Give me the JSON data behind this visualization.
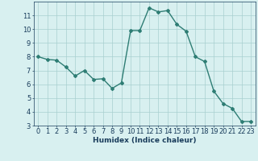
{
  "x": [
    0,
    1,
    2,
    3,
    4,
    5,
    6,
    7,
    8,
    9,
    10,
    11,
    12,
    13,
    14,
    15,
    16,
    17,
    18,
    19,
    20,
    21,
    22,
    23
  ],
  "y": [
    8.0,
    7.8,
    7.75,
    7.25,
    6.6,
    7.0,
    6.35,
    6.4,
    5.7,
    6.1,
    9.9,
    9.9,
    11.55,
    11.25,
    11.35,
    10.35,
    9.85,
    8.0,
    7.65,
    5.5,
    4.6,
    4.25,
    3.3,
    3.3
  ],
  "line_color": "#2e7d74",
  "marker": "D",
  "marker_size": 2.0,
  "bg_color": "#d8f0f0",
  "grid_color": "#a8d0d0",
  "xlabel": "Humidex (Indice chaleur)",
  "xlabel_color": "#1a3d5c",
  "tick_color": "#1a3d5c",
  "ylim": [
    3,
    12
  ],
  "xlim": [
    -0.5,
    23.5
  ],
  "yticks": [
    3,
    4,
    5,
    6,
    7,
    8,
    9,
    10,
    11
  ],
  "xticks": [
    0,
    1,
    2,
    3,
    4,
    5,
    6,
    7,
    8,
    9,
    10,
    11,
    12,
    13,
    14,
    15,
    16,
    17,
    18,
    19,
    20,
    21,
    22,
    23
  ],
  "line_width": 1.0,
  "font_size": 6.0,
  "xlabel_fontsize": 6.5
}
